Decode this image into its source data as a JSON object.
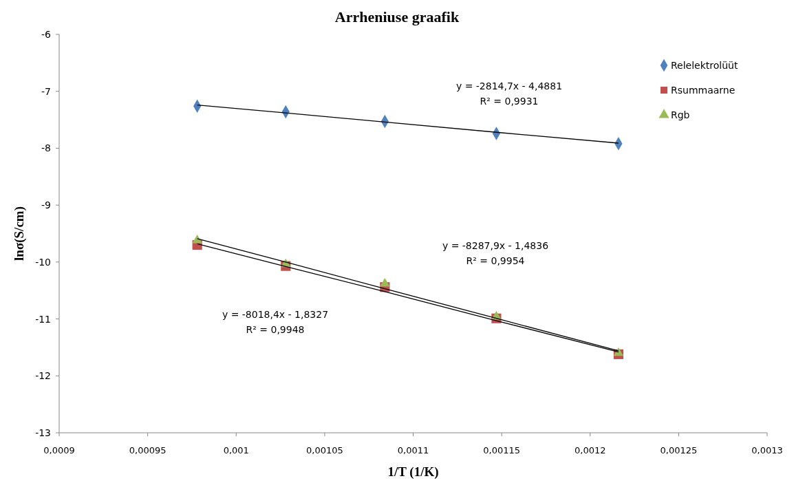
{
  "chart_data": {
    "type": "scatter",
    "title": "Arrheniuse graafik",
    "xlabel": "1/T (1/K)",
    "ylabel": "lnσ(S/cm)",
    "xlim": [
      0.0009,
      0.0013
    ],
    "xticks": [
      {
        "value": 0.0009,
        "label": "0,0009"
      },
      {
        "value": 0.00095,
        "label": "0,00095"
      },
      {
        "value": 0.001,
        "label": "0,001"
      },
      {
        "value": 0.00105,
        "label": "0,00105"
      },
      {
        "value": 0.0011,
        "label": "0,0011"
      },
      {
        "value": 0.00115,
        "label": "0,00115"
      },
      {
        "value": 0.0012,
        "label": "0,0012"
      },
      {
        "value": 0.00125,
        "label": "0,00125"
      },
      {
        "value": 0.0013,
        "label": "0,0013"
      }
    ],
    "ylim": [
      -13,
      -6
    ],
    "yticks": [
      -13,
      -12,
      -11,
      -10,
      -9,
      -8,
      -7,
      -6
    ],
    "grid": false,
    "legend": "top right",
    "x": [
      0.000978,
      0.001028,
      0.001084,
      0.001147,
      0.001216
    ],
    "series": [
      {
        "name": "Relelektrolüüt",
        "color": "#4f81bd",
        "marker": "diamond",
        "values": [
          -7.26,
          -7.36,
          -7.53,
          -7.74,
          -7.92
        ]
      },
      {
        "name": "Rsummaarne",
        "color": "#c0504d",
        "marker": "square",
        "values": [
          -9.7,
          -10.07,
          -10.44,
          -10.99,
          -11.62
        ]
      },
      {
        "name": "Rgb",
        "color": "#9bbb59",
        "marker": "triangle",
        "values": [
          -9.62,
          -10.04,
          -10.38,
          -10.96,
          -11.6
        ]
      },
      {
        "type": "line",
        "color": "#000000",
        "marker": "none",
        "values": [
          -7.24,
          -7.38,
          -7.54,
          -7.72,
          -7.91
        ]
      },
      {
        "type": "line",
        "color": "#000000",
        "marker": "none",
        "values": [
          -9.68,
          -10.08,
          -10.52,
          -11.03,
          -11.58
        ]
      },
      {
        "type": "line",
        "color": "#000000",
        "marker": "none",
        "values": [
          -9.59,
          -10.0,
          -10.47,
          -10.99,
          -11.56
        ]
      }
    ],
    "annotations": [
      "y = -2814,7x - 4,4881\nR² = 0,9931",
      "y = -8287,9x - 1,4836\nR² = 0,9954",
      "y = -8018,4x - 1,8327\nR² = 0,9948"
    ]
  }
}
